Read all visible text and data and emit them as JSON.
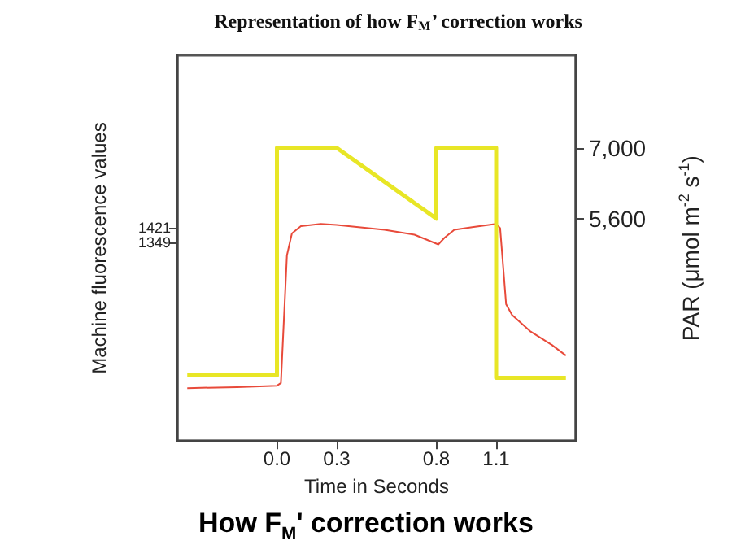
{
  "chart_data": {
    "type": "line",
    "title": "Representation of how F$_{M}$’ correction works",
    "xlabel": "Time in Seconds",
    "ylabel": "Machine fluorescence values",
    "y2label": "PAR (μmol m$^{-2}$ s$^{-1}$)",
    "annotations": [
      "How F$_{M}$' correction works"
    ],
    "xlim": [
      -0.5,
      1.5
    ],
    "xticks": [
      {
        "value": 0,
        "label": "0.0"
      },
      0.3,
      0.8,
      1.1
    ],
    "ylim": [
      375,
      2270
    ],
    "yticks": [
      1349,
      1421
    ],
    "y2lim": [
      1200,
      8830
    ],
    "y2ticks": [
      {
        "value": 5600,
        "label": "5,600"
      },
      {
        "value": 7000,
        "label": "7,000"
      }
    ],
    "series": [
      {
        "color": "#e84a3a",
        "x": [
          -0.45,
          -0.2,
          0,
          0.02,
          0.05,
          0.075,
          0.12,
          0.22,
          0.3,
          0.54,
          0.69,
          0.81,
          0.84,
          0.89,
          0.98,
          1.1,
          1.12,
          1.15,
          1.18,
          1.27,
          1.38,
          1.45
        ],
        "values": [
          635,
          640,
          647,
          660,
          1287,
          1395,
          1431,
          1442,
          1437,
          1413,
          1389,
          1341,
          1373,
          1413,
          1426,
          1442,
          1421,
          1047,
          994,
          915,
          847,
          795
        ]
      },
      {
        "color": "#e8e626",
        "axis": "y2",
        "x": [
          -0.45,
          0,
          0,
          0.3,
          0.8,
          0.8,
          1.1,
          1.1,
          1.45
        ],
        "values": [
          2500,
          2500,
          7000,
          7000,
          5600,
          7000,
          7000,
          2450,
          2450
        ]
      }
    ],
    "grid": false,
    "marker": "none",
    "line_style": "solid"
  }
}
